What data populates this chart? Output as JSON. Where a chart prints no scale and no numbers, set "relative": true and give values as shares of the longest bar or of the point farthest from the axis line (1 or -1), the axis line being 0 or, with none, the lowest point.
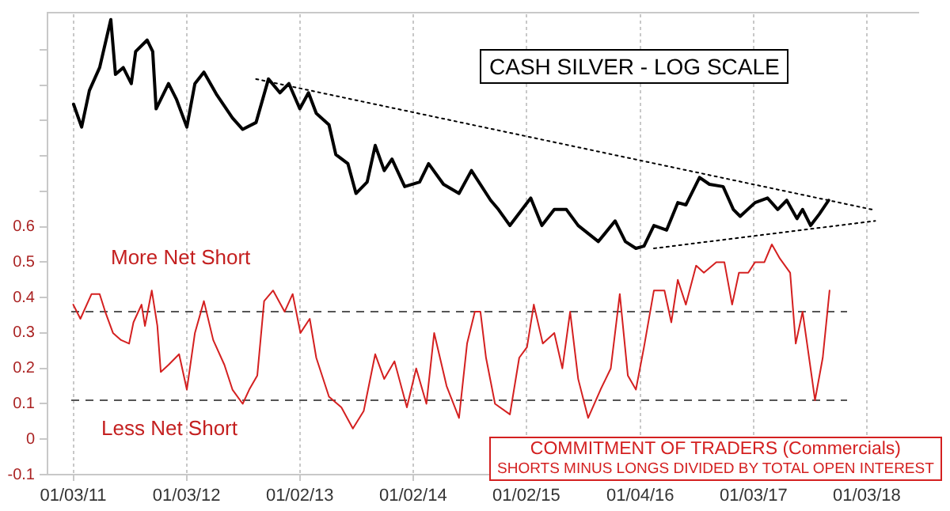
{
  "chart_data": [
    {
      "type": "line",
      "title": "CASH SILVER - LOG SCALE",
      "relative": true,
      "xlim": [
        "2010-10-12",
        "2018-06-18"
      ],
      "series": [
        {
          "color": "#000000",
          "x": [
            "2011-01-04",
            "2011-01-30",
            "2011-02-24",
            "2011-03-29",
            "2011-05-04",
            "2011-05-19",
            "2011-06-13",
            "2011-07-09",
            "2011-07-23",
            "2011-08-29",
            "2011-09-16",
            "2011-09-27",
            "2011-11-06",
            "2011-12-02",
            "2012-01-04",
            "2012-01-30",
            "2012-02-28",
            "2012-04-10",
            "2012-05-30",
            "2012-07-02",
            "2012-08-14",
            "2012-09-23",
            "2012-10-30",
            "2012-11-28",
            "2013-01-02",
            "2013-01-30",
            "2013-02-24",
            "2013-04-06",
            "2013-04-28",
            "2013-06-06",
            "2013-07-02",
            "2013-08-07",
            "2013-09-02",
            "2013-10-01",
            "2013-10-26",
            "2013-12-06",
            "2014-01-23",
            "2014-02-21",
            "2014-04-10",
            "2014-05-30",
            "2014-07-09",
            "2014-09-09",
            "2014-10-04",
            "2014-11-10",
            "2015-01-16",
            "2015-02-21",
            "2015-04-02",
            "2015-05-11",
            "2015-06-18",
            "2015-08-22",
            "2015-10-15",
            "2015-11-17",
            "2015-12-21",
            "2016-01-16",
            "2016-02-17",
            "2016-03-29",
            "2016-05-04",
            "2016-05-30",
            "2016-07-13",
            "2016-08-14",
            "2016-09-27",
            "2016-10-30",
            "2016-11-21",
            "2017-01-08",
            "2017-02-17",
            "2017-03-22",
            "2017-04-20",
            "2017-05-23",
            "2017-06-10",
            "2017-07-06",
            "2017-08-03",
            "2017-09-02"
          ],
          "values": [
            0.63,
            0.53,
            0.69,
            0.79,
            1.0,
            0.76,
            0.79,
            0.72,
            0.86,
            0.91,
            0.86,
            0.61,
            0.72,
            0.65,
            0.53,
            0.72,
            0.77,
            0.67,
            0.57,
            0.52,
            0.55,
            0.74,
            0.68,
            0.72,
            0.61,
            0.68,
            0.59,
            0.54,
            0.41,
            0.37,
            0.24,
            0.29,
            0.45,
            0.34,
            0.39,
            0.27,
            0.29,
            0.37,
            0.28,
            0.24,
            0.34,
            0.21,
            0.17,
            0.1,
            0.22,
            0.1,
            0.17,
            0.17,
            0.1,
            0.03,
            0.12,
            0.03,
            0,
            0.01,
            0.1,
            0.08,
            0.2,
            0.19,
            0.31,
            0.28,
            0.27,
            0.17,
            0.14,
            0.2,
            0.22,
            0.17,
            0.21,
            0.13,
            0.17,
            0.1,
            0.15,
            0.21
          ]
        },
        {
          "type": "line",
          "color": "#000000",
          "line_style": "dotted",
          "x": [
            "2012-08-14",
            "2018-01-19"
          ],
          "values": [
            0.74,
            0.17
          ]
        },
        {
          "type": "line",
          "color": "#000000",
          "line_style": "dotted",
          "x": [
            "2016-02-17",
            "2018-01-30"
          ],
          "values": [
            0,
            0.12
          ]
        }
      ]
    },
    {
      "type": "line",
      "title": "COMMITMENT OF TRADERS (Commercials)",
      "subtitle": "SHORTS MINUS LONGS DIVIDED BY TOTAL OPEN INTEREST",
      "annotations": [
        "More Net Short",
        "Less Net Short"
      ],
      "xlim": [
        "2010-10-12",
        "2018-06-18"
      ],
      "xticks": [
        {
          "value": "2011-01-03",
          "label": "01/03/11"
        },
        {
          "value": "2012-01-03",
          "label": "01/03/12"
        },
        {
          "value": "2013-01-02",
          "label": "01/02/13"
        },
        {
          "value": "2014-01-02",
          "label": "01/02/14"
        },
        {
          "value": "2015-01-02",
          "label": "01/02/15"
        },
        {
          "value": "2016-01-04",
          "label": "01/04/16"
        },
        {
          "value": "2017-01-03",
          "label": "01/03/17"
        },
        {
          "value": "2018-01-03",
          "label": "01/03/18"
        }
      ],
      "ylim": [
        -0.1,
        1.2
      ],
      "yticks": [
        -0.1,
        0,
        0.1,
        0.2,
        0.3,
        0.4,
        0.5,
        0.6,
        {
          "value": 0.7,
          "label": null
        },
        {
          "value": 0.8,
          "label": null
        },
        {
          "value": 0.9,
          "label": null
        },
        {
          "value": 1.0,
          "label": null
        },
        {
          "value": 1.1,
          "label": null
        }
      ],
      "grid": "x",
      "ref_lines": [
        {
          "axis": "y",
          "value": 0.36,
          "color": "#555555",
          "line_style": "dashed"
        },
        {
          "axis": "y",
          "value": 0.11,
          "color": "#555555",
          "line_style": "dashed"
        }
      ],
      "series": [
        {
          "color": "#d42020",
          "x": [
            "2011-01-03",
            "2011-01-26",
            "2011-03-03",
            "2011-03-29",
            "2011-04-16",
            "2011-05-11",
            "2011-06-06",
            "2011-07-02",
            "2011-07-16",
            "2011-08-11",
            "2011-08-22",
            "2011-09-13",
            "2011-10-01",
            "2011-10-12",
            "2011-11-06",
            "2011-12-10",
            "2012-01-04",
            "2012-01-30",
            "2012-02-28",
            "2012-03-29",
            "2012-05-04",
            "2012-05-30",
            "2012-07-02",
            "2012-07-23",
            "2012-08-18",
            "2012-09-09",
            "2012-10-08",
            "2012-11-14",
            "2012-12-10",
            "2013-01-04",
            "2013-02-03",
            "2013-02-24",
            "2013-04-06",
            "2013-05-16",
            "2013-06-22",
            "2013-07-27",
            "2013-09-02",
            "2013-10-01",
            "2013-11-03",
            "2013-12-13",
            "2014-01-12",
            "2014-02-14",
            "2014-03-11",
            "2014-04-20",
            "2014-05-30",
            "2014-06-25",
            "2014-07-20",
            "2014-08-07",
            "2014-08-25",
            "2014-09-23",
            "2014-11-10",
            "2014-12-10",
            "2015-01-04",
            "2015-01-26",
            "2015-02-24",
            "2015-04-02",
            "2015-04-28",
            "2015-05-23",
            "2015-06-18",
            "2015-07-20",
            "2015-08-29",
            "2015-10-01",
            "2015-10-30",
            "2015-11-25",
            "2015-12-21",
            "2016-01-16",
            "2016-02-17",
            "2016-03-22",
            "2016-04-13",
            "2016-05-04",
            "2016-05-30",
            "2016-07-02",
            "2016-07-27",
            "2016-09-05",
            "2016-10-01",
            "2016-10-26",
            "2016-11-17",
            "2016-12-17",
            "2017-01-08",
            "2017-02-07",
            "2017-03-03",
            "2017-03-29",
            "2017-05-01",
            "2017-05-19",
            "2017-06-10",
            "2017-07-09",
            "2017-07-20",
            "2017-08-14",
            "2017-09-05"
          ],
          "values": [
            0.38,
            0.34,
            0.41,
            0.41,
            0.36,
            0.3,
            0.28,
            0.27,
            0.33,
            0.38,
            0.32,
            0.42,
            0.32,
            0.19,
            0.21,
            0.24,
            0.14,
            0.3,
            0.39,
            0.28,
            0.21,
            0.14,
            0.1,
            0.14,
            0.18,
            0.39,
            0.42,
            0.36,
            0.41,
            0.3,
            0.34,
            0.23,
            0.12,
            0.09,
            0.03,
            0.08,
            0.24,
            0.17,
            0.22,
            0.09,
            0.2,
            0.1,
            0.3,
            0.15,
            0.06,
            0.27,
            0.36,
            0.36,
            0.23,
            0.1,
            0.07,
            0.23,
            0.26,
            0.38,
            0.27,
            0.3,
            0.2,
            0.36,
            0.17,
            0.06,
            0.14,
            0.2,
            0.41,
            0.18,
            0.14,
            0.26,
            0.42,
            0.42,
            0.33,
            0.45,
            0.38,
            0.49,
            0.47,
            0.5,
            0.5,
            0.38,
            0.47,
            0.47,
            0.5,
            0.5,
            0.55,
            0.51,
            0.47,
            0.27,
            0.36,
            0.18,
            0.11,
            0.23,
            0.42
          ]
        }
      ]
    }
  ]
}
